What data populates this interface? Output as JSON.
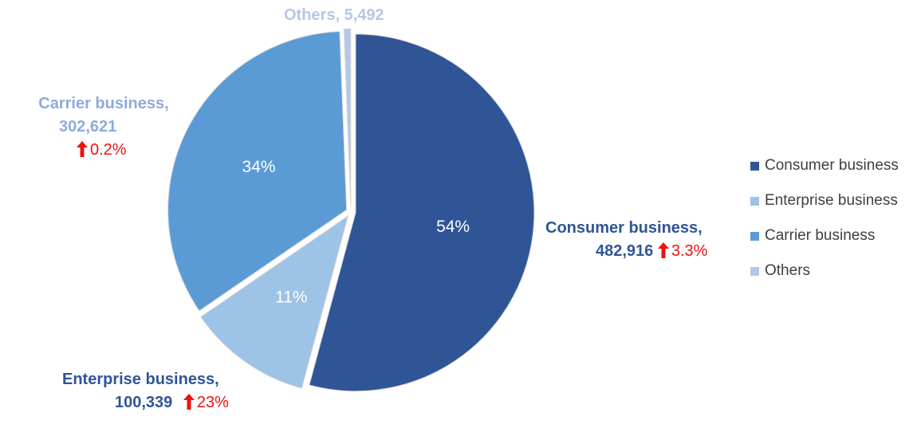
{
  "chart_data": {
    "type": "pie",
    "categories": [
      "Consumer business",
      "Enterprise business",
      "Carrier business",
      "Others"
    ],
    "values": [
      482916,
      100339,
      302621,
      5492
    ],
    "percent_labels": [
      "54%",
      "11%",
      "34%",
      ""
    ],
    "value_labels": [
      "482,916",
      "100,339",
      "302,621",
      "5,492"
    ],
    "growth": [
      "3.3%",
      "23%",
      "0.2%",
      ""
    ],
    "colors": [
      "#2f5597",
      "#9dc3e6",
      "#5b9bd5",
      "#b4c7e7"
    ],
    "label_colors": [
      "#2f5597",
      "#2f5597",
      "#8faadc",
      "#b4c7e7"
    ],
    "legend_placement": "right",
    "start_angle_deg": 0
  },
  "callouts": {
    "consumer": {
      "name": "Consumer business,",
      "value": "482,916",
      "growth": "3.3%"
    },
    "enterprise": {
      "name": "Enterprise business,",
      "value": "100,339",
      "growth": "23%"
    },
    "carrier": {
      "name": "Carrier business,",
      "value": "302,621",
      "growth": "0.2%"
    },
    "others": {
      "name": "Others,",
      "value": "5,492"
    }
  }
}
